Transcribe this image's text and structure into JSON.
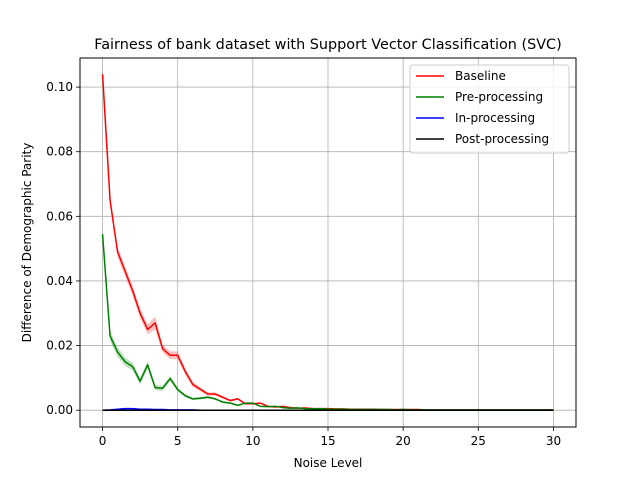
{
  "chart_data": {
    "type": "line",
    "title": "Fairness of bank dataset with Support Vector Classification (SVC)",
    "xlabel": "Noise Level",
    "ylabel": "Difference of Demographic Parity",
    "xlim": [
      -1.5,
      31.5
    ],
    "ylim": [
      -0.0052,
      0.109
    ],
    "xticks": [
      0,
      5,
      10,
      15,
      20,
      25,
      30
    ],
    "xtick_labels": [
      "0",
      "5",
      "10",
      "15",
      "20",
      "25",
      "30"
    ],
    "yticks": [
      0.0,
      0.02,
      0.04,
      0.06,
      0.08,
      0.1
    ],
    "ytick_labels": [
      "0.00",
      "0.02",
      "0.04",
      "0.06",
      "0.08",
      "0.10"
    ],
    "grid": true,
    "legend_position": "top-right",
    "x": [
      0,
      0.5,
      1,
      1.5,
      2,
      2.5,
      3,
      3.5,
      4,
      4.5,
      5,
      5.5,
      6,
      6.5,
      7,
      7.5,
      8,
      8.5,
      9,
      9.5,
      10,
      10.5,
      11,
      11.5,
      12,
      12.5,
      13,
      13.5,
      14,
      14.5,
      15,
      15.5,
      16,
      16.5,
      17,
      17.5,
      18,
      18.5,
      19,
      19.5,
      20,
      20.5,
      21,
      21.5,
      22,
      22.5,
      23,
      23.5,
      24,
      24.5,
      25,
      25.5,
      26,
      26.5,
      27,
      27.5,
      28,
      28.5,
      29,
      29.5,
      30
    ],
    "series": [
      {
        "name": "Baseline",
        "color": "#ff0000",
        "values": [
          0.104,
          0.065,
          0.049,
          0.043,
          0.037,
          0.03,
          0.025,
          0.027,
          0.019,
          0.017,
          0.017,
          0.012,
          0.008,
          0.0065,
          0.005,
          0.005,
          0.004,
          0.003,
          0.0035,
          0.002,
          0.002,
          0.0022,
          0.0012,
          0.001,
          0.0012,
          0.0008,
          0.0006,
          0.0007,
          0.0005,
          0.0005,
          0.0005,
          0.0004,
          0.0004,
          0.0003,
          0.0003,
          0.0003,
          0.0003,
          0.0002,
          0.0002,
          0.0002,
          0.0002,
          0.0002,
          0.0002,
          0.0001,
          0.0001,
          0.0001,
          0.0001,
          0.0001,
          0.0001,
          0.0001,
          0.0001,
          0.0001,
          0.0001,
          0.0001,
          0.0001,
          0.0001,
          0.0001,
          0.0001,
          0.0001,
          0.0001,
          0.0001
        ],
        "band": [
          0.0008,
          0.0015,
          0.0015,
          0.0015,
          0.0015,
          0.0015,
          0.0015,
          0.002,
          0.0012,
          0.0012,
          0.0012,
          0.001,
          0.0008,
          0.0006,
          0.0005,
          0.0005,
          0.0004,
          0.0003,
          0.0003,
          0.0002,
          0.0002,
          0.0002,
          0.0001,
          0.0001,
          0.0001,
          0.0001,
          0.0001,
          0.0001,
          0.0001,
          0.0001,
          0.0001,
          0.0001,
          0.0001,
          0.0001,
          0.0001,
          0.0001,
          0.0001,
          0.0001,
          0.0001,
          0.0001,
          0.0001,
          0.0001,
          0.0001,
          0.0001,
          0.0001,
          0.0001,
          0.0001,
          0.0001,
          0.0001,
          0.0001,
          0.0001,
          0.0001,
          0.0001,
          0.0001,
          0.0001,
          0.0001,
          0.0001,
          0.0001,
          0.0001,
          0.0001,
          0.0001
        ]
      },
      {
        "name": "Pre-processing",
        "color": "#008000",
        "values": [
          0.0545,
          0.023,
          0.018,
          0.015,
          0.0135,
          0.009,
          0.014,
          0.007,
          0.0068,
          0.0098,
          0.0064,
          0.0045,
          0.0035,
          0.0037,
          0.004,
          0.0035,
          0.0025,
          0.0022,
          0.0015,
          0.0022,
          0.0022,
          0.0012,
          0.0011,
          0.0012,
          0.0008,
          0.0006,
          0.0007,
          0.0005,
          0.0004,
          0.0005,
          0.0003,
          0.0003,
          0.0003,
          0.0002,
          0.0002,
          0.0002,
          0.0002,
          0.0002,
          0.0002,
          0.0001,
          0.0002,
          0.0001,
          0.0001,
          0.0001,
          0.0001,
          0.0001,
          0.0001,
          0.0001,
          0.0001,
          0.0001,
          0.0001,
          0.0001,
          0.0001,
          0.0001,
          0.0001,
          0.0001,
          0.0001,
          0.0001,
          0.0001,
          0.0001,
          0.0001
        ],
        "band": [
          0.0005,
          0.0015,
          0.0015,
          0.0013,
          0.0012,
          0.001,
          0.0012,
          0.0008,
          0.0008,
          0.0008,
          0.0006,
          0.0005,
          0.0004,
          0.0004,
          0.0004,
          0.0003,
          0.0003,
          0.0003,
          0.0002,
          0.0002,
          0.0002,
          0.0001,
          0.0001,
          0.0001,
          0.0001,
          0.0001,
          0.0001,
          0.0001,
          0.0001,
          0.0001,
          0.0001,
          0.0001,
          0.0001,
          0.0001,
          0.0001,
          0.0001,
          0.0001,
          0.0001,
          0.0001,
          0.0001,
          0.0001,
          0.0001,
          0.0001,
          0.0001,
          0.0001,
          0.0001,
          0.0001,
          0.0001,
          0.0001,
          0.0001,
          0.0001,
          0.0001,
          0.0001,
          0.0001,
          0.0001,
          0.0001,
          0.0001,
          0.0001,
          0.0001,
          0.0001,
          0.0001
        ]
      },
      {
        "name": "In-processing",
        "color": "#0000ff",
        "values": [
          0.0,
          0.0001,
          0.0003,
          0.0005,
          0.0005,
          0.0003,
          0.0003,
          0.0002,
          0.0002,
          0.0001,
          0.0001,
          0.0001,
          0.0001,
          0.0,
          0.0,
          0.0,
          0.0,
          0.0,
          0.0,
          0.0,
          0.0,
          0.0,
          0.0,
          0.0,
          0.0,
          0.0,
          0.0,
          0.0,
          0.0,
          0.0,
          0.0,
          0.0,
          0.0,
          0.0,
          0.0,
          0.0,
          0.0,
          0.0,
          0.0,
          0.0,
          0.0,
          0.0,
          0.0,
          0.0,
          0.0,
          0.0,
          0.0,
          0.0,
          0.0,
          0.0,
          0.0,
          0.0,
          0.0,
          0.0,
          0.0,
          0.0,
          0.0,
          0.0,
          0.0,
          0.0,
          0.0
        ]
      },
      {
        "name": "Post-processing",
        "color": "#000000",
        "values": [
          0.0,
          0.0,
          0.0,
          0.0,
          0.0,
          0.0,
          0.0,
          0.0,
          0.0,
          0.0,
          0.0,
          0.0,
          0.0,
          0.0,
          0.0,
          0.0,
          0.0,
          0.0,
          0.0,
          0.0,
          0.0,
          0.0,
          0.0,
          0.0,
          0.0,
          0.0,
          0.0,
          0.0,
          0.0,
          0.0,
          0.0,
          0.0,
          0.0,
          0.0,
          0.0,
          0.0,
          0.0,
          0.0,
          0.0,
          0.0,
          0.0,
          0.0,
          0.0,
          0.0,
          0.0,
          0.0,
          0.0,
          0.0,
          0.0,
          0.0,
          0.0,
          0.0,
          0.0,
          0.0,
          0.0,
          0.0,
          0.0,
          0.0,
          0.0,
          0.0,
          0.0
        ]
      }
    ]
  }
}
